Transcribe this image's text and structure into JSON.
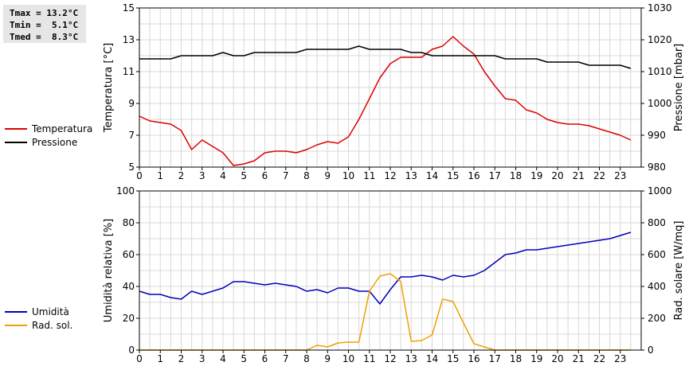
{
  "stats": [
    {
      "label": "Tmax",
      "value": "13.2°C"
    },
    {
      "label": "Tmin",
      "value": " 5.1°C"
    },
    {
      "label": "Tmed",
      "value": " 8.3°C"
    }
  ],
  "colors": {
    "temperature": "#dd0000",
    "pressure": "#000000",
    "humidity": "#0000bb",
    "solar": "#f0a000",
    "grid": "#d8d8d8"
  },
  "chart_data": [
    {
      "type": "line",
      "x_ticks": [
        "0",
        "1",
        "2",
        "3",
        "4",
        "5",
        "6",
        "7",
        "8",
        "9",
        "10",
        "11",
        "12",
        "13",
        "14",
        "15",
        "16",
        "17",
        "18",
        "19",
        "20",
        "21",
        "22",
        "23"
      ],
      "xlim": [
        0,
        24
      ],
      "grid": true,
      "legend_position": "left",
      "y_left": {
        "label": "Temperatura [°C]",
        "ylim": [
          5,
          15
        ],
        "ticks": [
          5,
          7,
          9,
          11,
          13,
          15
        ]
      },
      "y_right": {
        "label": "Pressione [mbar]",
        "ylim": [
          980,
          1030
        ],
        "ticks": [
          980,
          990,
          1000,
          1010,
          1020,
          1030
        ]
      },
      "series": [
        {
          "name": "Temperatura",
          "axis": "left",
          "x": [
            0,
            0.5,
            1,
            1.5,
            2,
            2.5,
            3,
            3.5,
            4,
            4.5,
            5,
            5.5,
            6,
            6.5,
            7,
            7.5,
            8,
            8.5,
            9,
            9.5,
            10,
            10.5,
            11,
            11.5,
            12,
            12.5,
            13,
            13.5,
            14,
            14.5,
            15,
            15.5,
            16,
            16.5,
            17,
            17.5,
            18,
            18.5,
            19,
            19.5,
            20,
            20.5,
            21,
            21.5,
            22,
            22.5,
            23,
            23.5
          ],
          "y": [
            8.2,
            7.9,
            7.8,
            7.7,
            7.3,
            6.1,
            6.7,
            6.3,
            5.9,
            5.1,
            5.2,
            5.4,
            5.9,
            6.0,
            6.0,
            5.9,
            6.1,
            6.4,
            6.6,
            6.5,
            6.9,
            8.0,
            9.3,
            10.6,
            11.5,
            11.9,
            11.9,
            11.9,
            12.4,
            12.6,
            13.2,
            12.6,
            12.1,
            11.0,
            10.1,
            9.3,
            9.2,
            8.6,
            8.4,
            8.0,
            7.8,
            7.7,
            7.7,
            7.6,
            7.4,
            7.2,
            7.0,
            6.7
          ]
        },
        {
          "name": "Pressione",
          "axis": "right",
          "x": [
            0,
            0.5,
            1,
            1.5,
            2,
            2.5,
            3,
            3.5,
            4,
            4.5,
            5,
            5.5,
            6,
            6.5,
            7,
            7.5,
            8,
            8.5,
            9,
            9.5,
            10,
            10.5,
            11,
            11.5,
            12,
            12.5,
            13,
            13.5,
            14,
            14.5,
            15,
            15.5,
            16,
            16.5,
            17,
            17.5,
            18,
            18.5,
            19,
            19.5,
            20,
            20.5,
            21,
            21.5,
            22,
            22.5,
            23,
            23.5
          ],
          "y": [
            1014,
            1014,
            1014,
            1014,
            1015,
            1015,
            1015,
            1015,
            1016,
            1015,
            1015,
            1016,
            1016,
            1016,
            1016,
            1016,
            1017,
            1017,
            1017,
            1017,
            1017,
            1018,
            1017,
            1017,
            1017,
            1017,
            1016,
            1016,
            1015,
            1015,
            1015,
            1015,
            1015,
            1015,
            1015,
            1014,
            1014,
            1014,
            1014,
            1013,
            1013,
            1013,
            1013,
            1012,
            1012,
            1012,
            1012,
            1011
          ]
        }
      ]
    },
    {
      "type": "line",
      "x_ticks": [
        "0",
        "1",
        "2",
        "3",
        "4",
        "5",
        "6",
        "7",
        "8",
        "9",
        "10",
        "11",
        "12",
        "13",
        "14",
        "15",
        "16",
        "17",
        "18",
        "19",
        "20",
        "21",
        "22",
        "23"
      ],
      "xlim": [
        0,
        24
      ],
      "grid": true,
      "legend_position": "left",
      "y_left": {
        "label": "Umidità relativa [%]",
        "ylim": [
          0,
          100
        ],
        "ticks": [
          0,
          20,
          40,
          60,
          80,
          100
        ]
      },
      "y_right": {
        "label": "Rad. solare [W/mq]",
        "ylim": [
          0,
          1000
        ],
        "ticks": [
          0,
          200,
          400,
          600,
          800,
          1000
        ]
      },
      "series": [
        {
          "name": "Umidità",
          "axis": "left",
          "x": [
            0,
            0.5,
            1,
            1.5,
            2,
            2.5,
            3,
            3.5,
            4,
            4.5,
            5,
            5.5,
            6,
            6.5,
            7,
            7.5,
            8,
            8.5,
            9,
            9.5,
            10,
            10.5,
            11,
            11.5,
            12,
            12.5,
            13,
            13.5,
            14,
            14.5,
            15,
            15.5,
            16,
            16.5,
            17,
            17.5,
            18,
            18.5,
            19,
            19.5,
            20,
            20.5,
            21,
            21.5,
            22,
            22.5,
            23,
            23.5
          ],
          "y": [
            37,
            35,
            35,
            33,
            32,
            37,
            35,
            37,
            39,
            43,
            43,
            42,
            41,
            42,
            41,
            40,
            37,
            38,
            36,
            39,
            39,
            37,
            37,
            29,
            38,
            46,
            46,
            47,
            46,
            44,
            47,
            46,
            47,
            50,
            55,
            60,
            61,
            63,
            63,
            64,
            65,
            66,
            67,
            68,
            69,
            70,
            72,
            74
          ]
        },
        {
          "name": "Rad. sol.",
          "axis": "right",
          "x": [
            0,
            1,
            2,
            3,
            4,
            5,
            6,
            7,
            8,
            8.5,
            9,
            9.5,
            10,
            10.5,
            11,
            11.5,
            12,
            12.5,
            13,
            13.5,
            14,
            14.5,
            15,
            15.5,
            16,
            16.5,
            17,
            18,
            19,
            20,
            21,
            22,
            23,
            23.5
          ],
          "y": [
            0,
            0,
            0,
            0,
            0,
            0,
            0,
            0,
            0,
            30,
            20,
            45,
            50,
            50,
            370,
            465,
            480,
            430,
            55,
            60,
            95,
            320,
            305,
            170,
            40,
            20,
            0,
            0,
            0,
            0,
            0,
            0,
            0,
            0
          ]
        }
      ]
    }
  ]
}
